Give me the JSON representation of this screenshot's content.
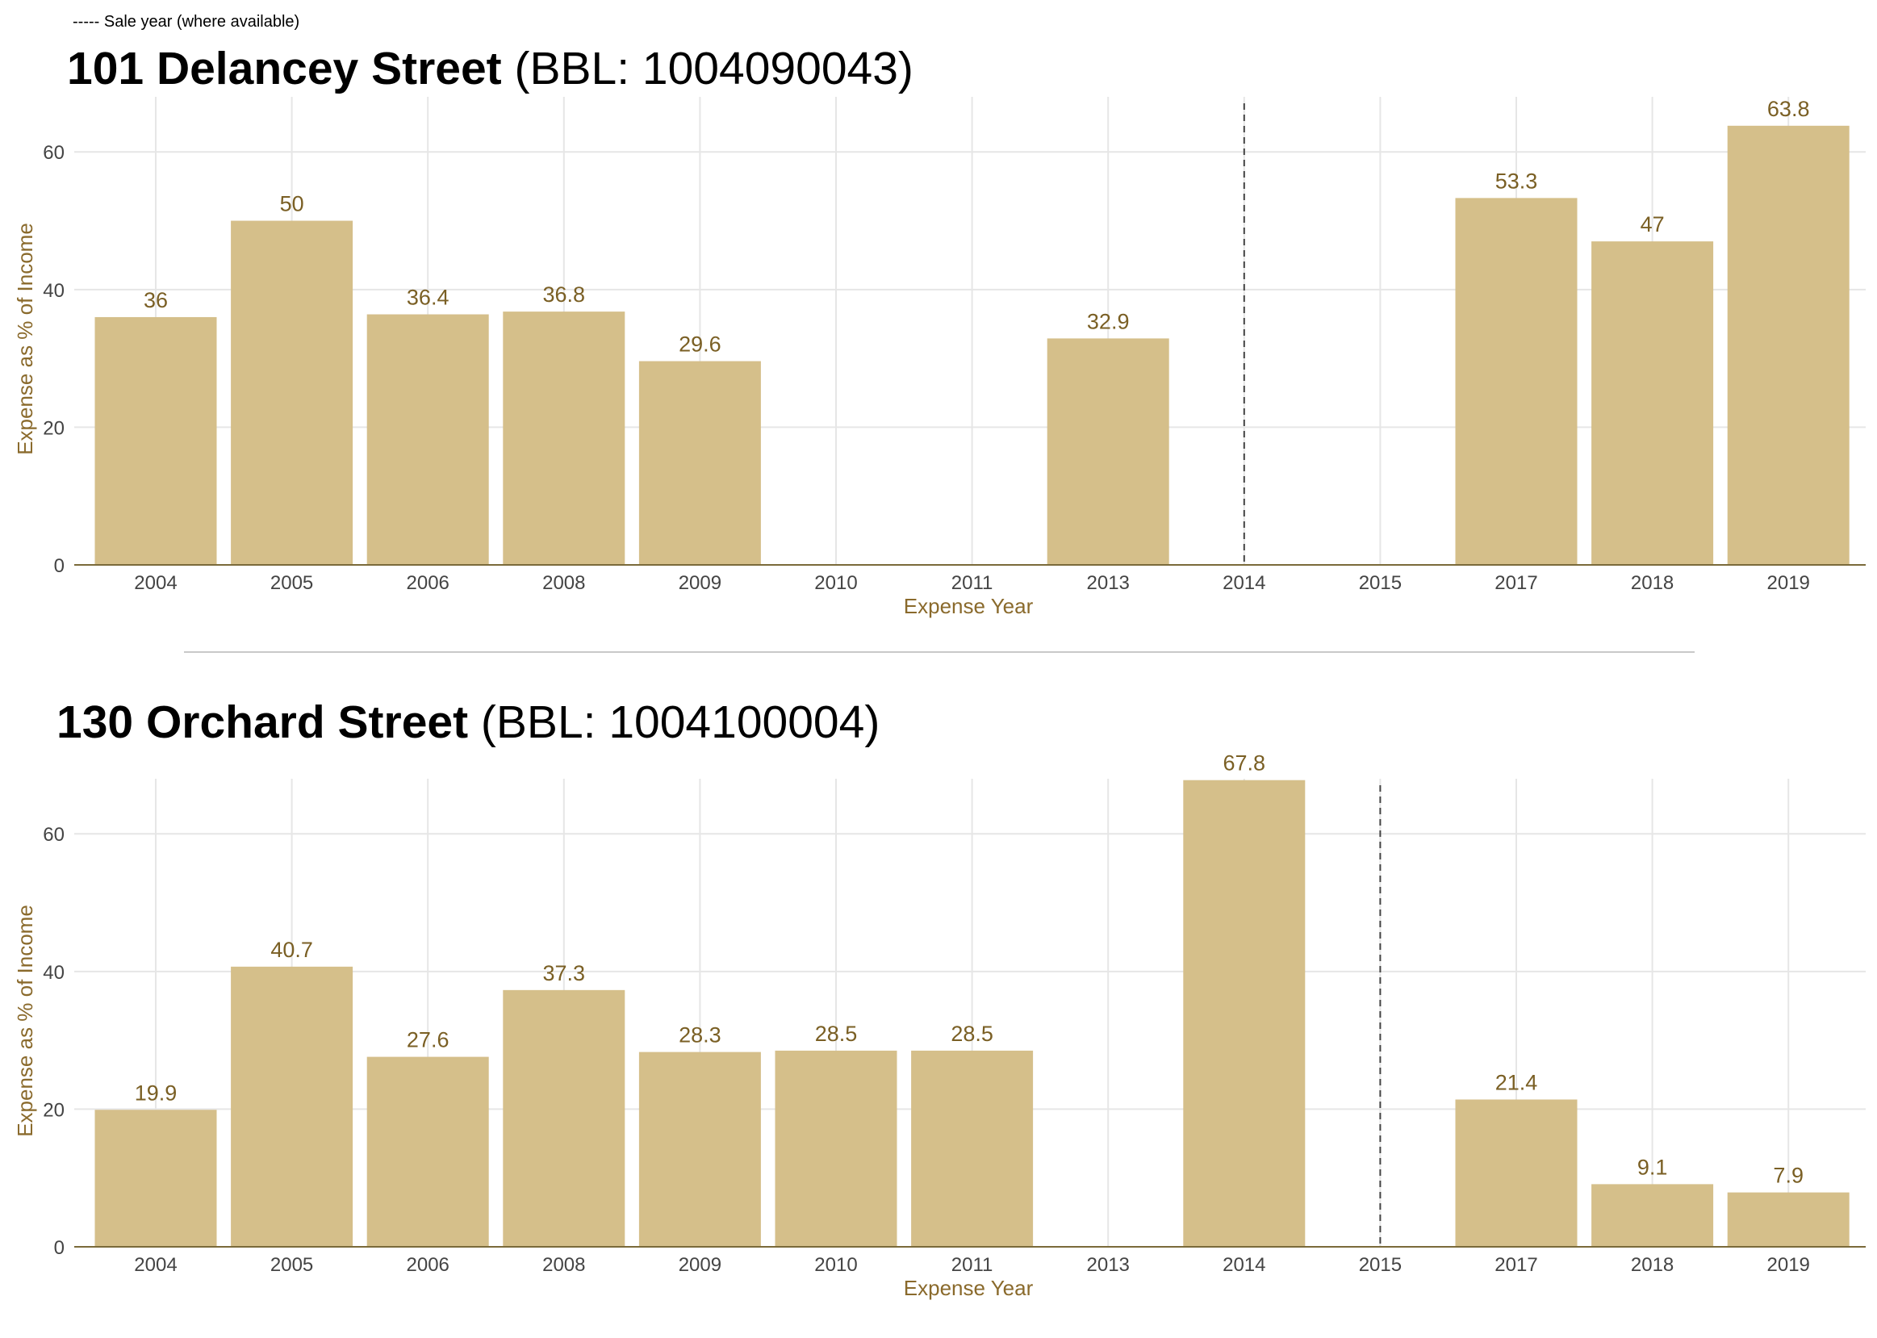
{
  "legend_note": "----- Sale year (where available)",
  "colors": {
    "bar": "#d5bf8a",
    "label": "#7a5f24",
    "axis_title": "#8a6a2c",
    "axis_line": "#7a6a3a",
    "grid": "#e6e6e6",
    "tick": "#444444",
    "sale_line": "#444444"
  },
  "chart_data": [
    {
      "type": "bar",
      "title_address": "101 Delancey Street",
      "title_bbl": "(BBL: 1004090043)",
      "xlabel": "Expense Year",
      "ylabel": "Expense as % of Income",
      "ylim": [
        0,
        68
      ],
      "yticks": [
        0,
        20,
        40,
        60
      ],
      "grid": true,
      "categories": [
        "2004",
        "2005",
        "2006",
        "2008",
        "2009",
        "2010",
        "2011",
        "2013",
        "2014",
        "2015",
        "2017",
        "2018",
        "2019"
      ],
      "values": [
        36,
        50,
        36.4,
        36.8,
        29.6,
        null,
        null,
        32.9,
        null,
        null,
        53.3,
        47,
        63.8
      ],
      "value_labels": [
        "36",
        "50",
        "36.4",
        "36.8",
        "29.6",
        "",
        "",
        "32.9",
        "",
        "",
        "53.3",
        "47",
        "63.8"
      ],
      "sale_year": "2014"
    },
    {
      "type": "bar",
      "title_address": "130 Orchard Street",
      "title_bbl": "(BBL: 1004100004)",
      "xlabel": "Expense Year",
      "ylabel": "Expense as % of Income",
      "ylim": [
        0,
        68
      ],
      "yticks": [
        0,
        20,
        40,
        60
      ],
      "grid": true,
      "categories": [
        "2004",
        "2005",
        "2006",
        "2008",
        "2009",
        "2010",
        "2011",
        "2013",
        "2014",
        "2015",
        "2017",
        "2018",
        "2019"
      ],
      "values": [
        19.9,
        40.7,
        27.6,
        37.3,
        28.3,
        28.5,
        28.5,
        null,
        67.8,
        null,
        21.4,
        9.1,
        7.9
      ],
      "value_labels": [
        "19.9",
        "40.7",
        "27.6",
        "37.3",
        "28.3",
        "28.5",
        "28.5",
        "",
        "67.8",
        "",
        "21.4",
        "9.1",
        "7.9"
      ],
      "sale_year": "2015"
    }
  ]
}
